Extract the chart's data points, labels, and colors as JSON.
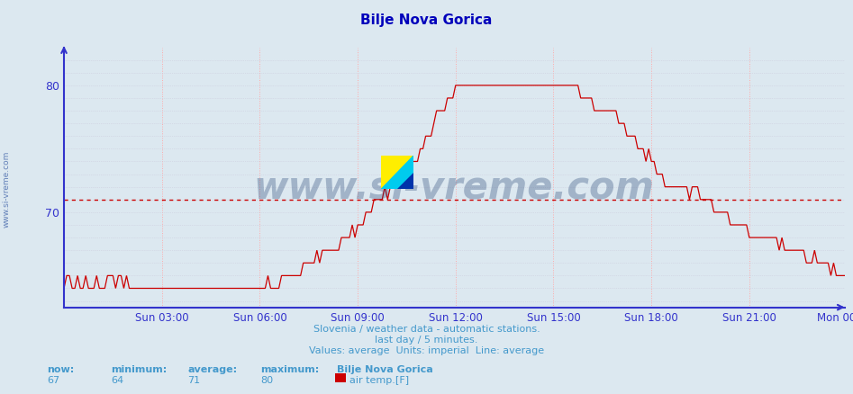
{
  "title": "Bilje Nova Gorica",
  "title_color": "#0000bb",
  "bg_color": "#dce8f0",
  "plot_bg_color": "#dce8f0",
  "line_color": "#cc0000",
  "avg_line_color": "#cc0000",
  "avg_value": 71,
  "yticks": [
    70,
    80
  ],
  "ylim": [
    62.5,
    83
  ],
  "footnote1": "Slovenia / weather data - automatic stations.",
  "footnote2": "last day / 5 minutes.",
  "footnote3": "Values: average  Units: imperial  Line: average",
  "footnote_color": "#4499cc",
  "watermark": "www.si-vreme.com",
  "watermark_color": "#1a3a6e",
  "sidebar_text": "www.si-vreme.com",
  "sidebar_color": "#4466aa",
  "now_label": "now:",
  "now_val": "67",
  "min_label": "minimum:",
  "min_val": "64",
  "avg_label": "average:",
  "avg_val": "71",
  "max_label": "maximum:",
  "max_val": "80",
  "station_label": "Bilje Nova Gorica",
  "series_label": "air temp.[F]",
  "label_color": "#4499cc",
  "xtick_labels": [
    "Sun 03:00",
    "Sun 06:00",
    "Sun 09:00",
    "Sun 12:00",
    "Sun 15:00",
    "Sun 18:00",
    "Sun 21:00",
    "Mon 00:00"
  ],
  "xtick_positions": [
    36,
    72,
    108,
    144,
    180,
    216,
    252,
    287
  ],
  "vgrid_color": "#ffaaaa",
  "hgrid_color": "#ccccdd",
  "axis_color": "#3333cc",
  "n_points": 288
}
